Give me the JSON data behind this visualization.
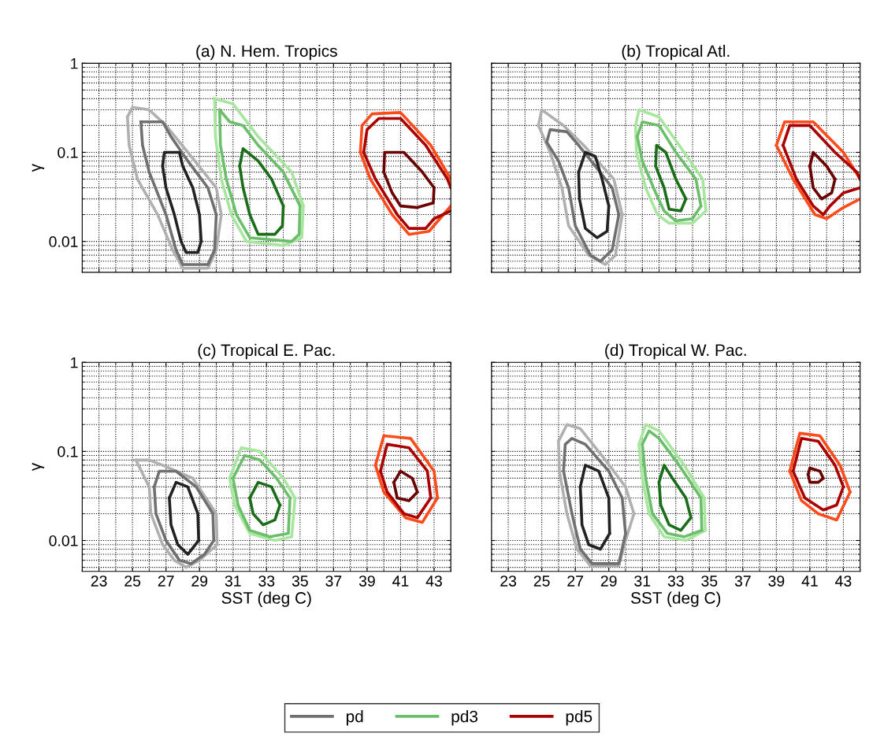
{
  "chart_data": [
    {
      "type": "line",
      "title": "(a) N. Hem. Tropics",
      "ylabel": "γ",
      "log": "y",
      "xlim": [
        22,
        44
      ],
      "ylim": [
        0.0045,
        1
      ],
      "xticks": [
        23,
        25,
        27,
        29,
        31,
        33,
        35,
        37,
        39,
        41,
        43
      ],
      "yticks": [
        0.01,
        0.1,
        1
      ],
      "grid": true,
      "tick_labels": "y",
      "series": [
        {
          "color": "#b0b0b0",
          "x": [
            24.7,
            25.0,
            26.0,
            27.0,
            28.5,
            30.0,
            30.3,
            null,
            24.7,
            24.8,
            25.3,
            26.5,
            27.4,
            28.0,
            29.5,
            30.0,
            30.3
          ],
          "values": [
            0.25,
            0.32,
            0.3,
            0.2,
            0.09,
            0.04,
            0.02,
            null,
            0.25,
            0.12,
            0.05,
            0.02,
            0.008,
            0.005,
            0.005,
            0.008,
            0.02
          ]
        },
        {
          "color": "#707070",
          "x": [
            25.5,
            26.8,
            27.3,
            28.3,
            29.5,
            30.0,
            null,
            25.5,
            25.6,
            26.0,
            27.0,
            27.6,
            28.0,
            29.5,
            29.9,
            30.0
          ],
          "values": [
            0.22,
            0.22,
            0.15,
            0.08,
            0.04,
            0.02,
            null,
            0.22,
            0.12,
            0.06,
            0.02,
            0.008,
            0.0055,
            0.0055,
            0.008,
            0.02
          ]
        },
        {
          "color": "#222222",
          "x": [
            26.8,
            26.9,
            27.8,
            28.0,
            28.6,
            29.0,
            29.1,
            null,
            26.8,
            27.0,
            27.5,
            27.9,
            28.2,
            28.9,
            29.1
          ],
          "values": [
            0.07,
            0.1,
            0.1,
            0.07,
            0.04,
            0.02,
            0.01,
            null,
            0.07,
            0.04,
            0.02,
            0.01,
            0.0075,
            0.0075,
            0.01
          ]
        },
        {
          "color": "#a8e6a0",
          "x": [
            29.9,
            31.0,
            32.5,
            34.5,
            35.2,
            null,
            29.9,
            29.95,
            30.3,
            30.9,
            31.8,
            34.0,
            35.1,
            35.2
          ],
          "values": [
            0.4,
            0.35,
            0.15,
            0.06,
            0.025,
            null,
            0.4,
            0.15,
            0.05,
            0.02,
            0.01,
            0.009,
            0.011,
            0.025
          ]
        },
        {
          "color": "#6cbf6a",
          "x": [
            30.2,
            30.8,
            31.6,
            32.5,
            34.0,
            35.0,
            null,
            30.2,
            30.25,
            30.6,
            31.2,
            32.0,
            34.5,
            34.95,
            35.0
          ],
          "values": [
            0.3,
            0.22,
            0.2,
            0.12,
            0.06,
            0.025,
            null,
            0.3,
            0.12,
            0.05,
            0.02,
            0.011,
            0.01,
            0.012,
            0.025
          ]
        },
        {
          "color": "#1a6e1a",
          "x": [
            31.4,
            31.6,
            32.5,
            33.3,
            34.0,
            null,
            31.4,
            31.6,
            32.0,
            32.5,
            33.5,
            33.95,
            34.0
          ],
          "values": [
            0.07,
            0.11,
            0.08,
            0.05,
            0.025,
            null,
            0.07,
            0.04,
            0.02,
            0.012,
            0.012,
            0.015,
            0.025
          ]
        },
        {
          "color": "#ff4a1a",
          "x": [
            38.6,
            38.7,
            39.3,
            41.0,
            42.8,
            44.0,
            null,
            38.6,
            39.2,
            40.5,
            41.5,
            42.7,
            44.0
          ],
          "values": [
            0.1,
            0.2,
            0.27,
            0.28,
            0.12,
            0.05,
            null,
            0.1,
            0.05,
            0.02,
            0.012,
            0.013,
            0.025
          ]
        },
        {
          "color": "#aa0000",
          "x": [
            38.8,
            39.0,
            39.7,
            41.0,
            42.5,
            43.8,
            44.0,
            null,
            38.8,
            39.5,
            40.8,
            41.5,
            42.5,
            43.0,
            44.0
          ],
          "values": [
            0.1,
            0.18,
            0.24,
            0.24,
            0.12,
            0.05,
            0.04,
            null,
            0.1,
            0.05,
            0.02,
            0.014,
            0.014,
            0.018,
            0.022
          ]
        },
        {
          "color": "#6a0000",
          "x": [
            40.0,
            40.05,
            41.2,
            42.3,
            43.0,
            null,
            40.0,
            40.5,
            41.0,
            42.0,
            42.95,
            43.0
          ],
          "values": [
            0.06,
            0.1,
            0.1,
            0.06,
            0.04,
            null,
            0.06,
            0.035,
            0.025,
            0.024,
            0.027,
            0.04
          ]
        }
      ]
    },
    {
      "type": "line",
      "title": "(b) Tropical Atl.",
      "log": "y",
      "xlim": [
        22,
        44
      ],
      "ylim": [
        0.0045,
        1
      ],
      "xticks": [
        23,
        25,
        27,
        29,
        31,
        33,
        35,
        37,
        39,
        41,
        43
      ],
      "yticks": [
        0.01,
        0.1,
        1
      ],
      "grid": true,
      "tick_labels": false,
      "series": [
        {
          "color": "#b0b0b0",
          "x": [
            24.8,
            25.0,
            26.3,
            27.5,
            29.3,
            29.8,
            null,
            24.8,
            25.5,
            26.2,
            26.6,
            27.8,
            28.8,
            29.4,
            29.8
          ],
          "values": [
            0.2,
            0.3,
            0.2,
            0.12,
            0.05,
            0.02,
            null,
            0.2,
            0.1,
            0.04,
            0.015,
            0.007,
            0.0055,
            0.007,
            0.02
          ]
        },
        {
          "color": "#707070",
          "x": [
            25.3,
            25.5,
            26.5,
            27.2,
            28.2,
            29.2,
            29.6,
            null,
            25.3,
            26.0,
            26.6,
            27.0,
            27.9,
            28.5,
            29.2,
            29.6
          ],
          "values": [
            0.13,
            0.18,
            0.17,
            0.12,
            0.07,
            0.04,
            0.02,
            null,
            0.13,
            0.08,
            0.04,
            0.015,
            0.007,
            0.006,
            0.008,
            0.02
          ]
        },
        {
          "color": "#222222",
          "x": [
            27.2,
            27.6,
            28.2,
            28.6,
            29.0,
            null,
            27.2,
            27.25,
            27.6,
            28.3,
            28.9,
            29.0
          ],
          "values": [
            0.06,
            0.1,
            0.09,
            0.05,
            0.025,
            null,
            0.06,
            0.03,
            0.014,
            0.011,
            0.013,
            0.025
          ]
        },
        {
          "color": "#a8e6a0",
          "x": [
            30.6,
            30.8,
            32.0,
            33.2,
            34.6,
            34.8,
            null,
            30.6,
            30.65,
            31.2,
            31.9,
            32.6,
            34.0,
            34.8
          ],
          "values": [
            0.2,
            0.3,
            0.25,
            0.12,
            0.05,
            0.022,
            null,
            0.2,
            0.1,
            0.04,
            0.02,
            0.016,
            0.016,
            0.022
          ]
        },
        {
          "color": "#6cbf6a",
          "x": [
            30.7,
            31.0,
            32.0,
            33.0,
            34.2,
            34.5,
            null,
            30.7,
            31.0,
            31.8,
            32.3,
            33.0,
            34.0,
            34.5
          ],
          "values": [
            0.15,
            0.22,
            0.2,
            0.1,
            0.05,
            0.025,
            null,
            0.15,
            0.08,
            0.035,
            0.022,
            0.017,
            0.018,
            0.025
          ]
        },
        {
          "color": "#1a6e1a",
          "x": [
            31.8,
            31.85,
            32.4,
            33.0,
            33.6,
            null,
            31.8,
            32.3,
            32.6,
            33.3,
            33.6
          ],
          "values": [
            0.07,
            0.12,
            0.1,
            0.05,
            0.03,
            null,
            0.07,
            0.04,
            0.023,
            0.022,
            0.03
          ]
        },
        {
          "color": "#ff4a1a",
          "x": [
            39.0,
            39.5,
            41.2,
            43.0,
            44.0,
            null,
            39.0,
            40.0,
            41.3,
            42.0,
            43.0,
            44.0
          ],
          "values": [
            0.12,
            0.22,
            0.22,
            0.1,
            0.05,
            null,
            0.12,
            0.05,
            0.02,
            0.018,
            0.024,
            0.03
          ]
        },
        {
          "color": "#aa0000",
          "x": [
            39.4,
            39.8,
            41.0,
            42.5,
            43.8,
            44.0,
            null,
            39.4,
            40.2,
            41.2,
            41.8,
            42.2,
            43.0,
            44.0
          ],
          "values": [
            0.12,
            0.2,
            0.2,
            0.1,
            0.06,
            0.05,
            null,
            0.12,
            0.05,
            0.025,
            0.02,
            0.025,
            0.035,
            0.04
          ]
        },
        {
          "color": "#6a0000",
          "x": [
            41.0,
            41.2,
            42.0,
            42.5,
            null,
            41.0,
            41.2,
            41.7,
            42.3,
            42.5
          ],
          "values": [
            0.07,
            0.1,
            0.07,
            0.05,
            null,
            0.07,
            0.04,
            0.03,
            0.035,
            0.05
          ]
        }
      ]
    },
    {
      "type": "line",
      "title": "(c) Tropical E. Pac.",
      "xlabel": "SST (deg C)",
      "ylabel": "γ",
      "log": "y",
      "xlim": [
        22,
        44
      ],
      "ylim": [
        0.0045,
        1
      ],
      "xticks": [
        23,
        25,
        27,
        29,
        31,
        33,
        35,
        37,
        39,
        41,
        43
      ],
      "yticks": [
        0.01,
        0.1,
        1
      ],
      "grid": true,
      "series": [
        {
          "color": "#b0b0b0",
          "x": [
            25.2,
            26.0,
            26.8,
            28.6,
            30.0,
            30.05,
            null,
            25.2,
            26.0,
            26.1,
            26.8,
            27.5,
            28.2,
            29.0,
            30.05
          ],
          "values": [
            0.08,
            0.08,
            0.07,
            0.05,
            0.02,
            0.009,
            null,
            0.08,
            0.04,
            0.02,
            0.009,
            0.006,
            0.005,
            0.006,
            0.009
          ]
        },
        {
          "color": "#707070",
          "x": [
            26.3,
            26.6,
            27.6,
            28.8,
            29.8,
            29.85,
            null,
            26.3,
            26.4,
            27.0,
            27.8,
            28.5,
            29.3,
            29.85
          ],
          "values": [
            0.04,
            0.06,
            0.06,
            0.04,
            0.02,
            0.01,
            null,
            0.04,
            0.02,
            0.01,
            0.006,
            0.0055,
            0.007,
            0.01
          ]
        },
        {
          "color": "#222222",
          "x": [
            27.2,
            27.6,
            28.3,
            28.9,
            28.95,
            null,
            27.2,
            27.3,
            27.7,
            28.3,
            28.95
          ],
          "values": [
            0.03,
            0.045,
            0.04,
            0.02,
            0.01,
            null,
            0.03,
            0.015,
            0.009,
            0.007,
            0.01
          ]
        },
        {
          "color": "#a8e6a0",
          "x": [
            30.8,
            31.5,
            32.6,
            34.0,
            34.7,
            null,
            30.8,
            31.1,
            32.0,
            33.5,
            34.5,
            34.7
          ],
          "values": [
            0.05,
            0.11,
            0.1,
            0.05,
            0.03,
            null,
            0.05,
            0.025,
            0.012,
            0.01,
            0.011,
            0.03
          ]
        },
        {
          "color": "#6cbf6a",
          "x": [
            31.0,
            31.7,
            32.6,
            33.6,
            34.4,
            null,
            31.0,
            31.3,
            32.0,
            33.2,
            34.3,
            34.4
          ],
          "values": [
            0.05,
            0.09,
            0.08,
            0.05,
            0.03,
            null,
            0.05,
            0.025,
            0.013,
            0.011,
            0.012,
            0.03
          ]
        },
        {
          "color": "#1a6e1a",
          "x": [
            32.0,
            32.5,
            33.3,
            33.8,
            null,
            32.0,
            32.2,
            32.8,
            33.5,
            33.8
          ],
          "values": [
            0.03,
            0.045,
            0.04,
            0.025,
            null,
            0.03,
            0.02,
            0.015,
            0.017,
            0.025
          ]
        },
        {
          "color": "#ff4a1a",
          "x": [
            39.5,
            40.0,
            41.6,
            43.0,
            43.2,
            null,
            39.5,
            40.0,
            41.3,
            42.3,
            43.2
          ],
          "values": [
            0.07,
            0.15,
            0.14,
            0.06,
            0.03,
            null,
            0.07,
            0.035,
            0.018,
            0.016,
            0.03
          ]
        },
        {
          "color": "#aa0000",
          "x": [
            39.8,
            40.2,
            41.5,
            42.6,
            42.8,
            null,
            39.8,
            40.2,
            41.2,
            42.0,
            42.8
          ],
          "values": [
            0.06,
            0.12,
            0.11,
            0.06,
            0.03,
            null,
            0.06,
            0.035,
            0.02,
            0.018,
            0.03
          ]
        },
        {
          "color": "#6a0000",
          "x": [
            40.6,
            41.0,
            41.7,
            42.0,
            null,
            40.6,
            40.8,
            41.5,
            42.0
          ],
          "values": [
            0.045,
            0.06,
            0.05,
            0.035,
            null,
            0.045,
            0.03,
            0.028,
            0.035
          ]
        }
      ]
    },
    {
      "type": "line",
      "title": "(d) Tropical W. Pac.",
      "xlabel": "SST (deg C)",
      "log": "y",
      "xlim": [
        22,
        44
      ],
      "ylim": [
        0.0045,
        1
      ],
      "xticks": [
        23,
        25,
        27,
        29,
        31,
        33,
        35,
        37,
        39,
        41,
        43
      ],
      "yticks": [
        0.01,
        0.1,
        1
      ],
      "grid": true,
      "tick_labels": "x",
      "legend": "bottom",
      "series": [
        {
          "color": "#b0b0b0",
          "x": [
            26.0,
            26.5,
            27.3,
            28.8,
            30.0,
            30.5,
            null,
            26.0,
            26.05,
            26.5,
            27.1,
            27.9,
            29.6,
            30.0,
            30.5
          ],
          "values": [
            0.13,
            0.2,
            0.18,
            0.08,
            0.04,
            0.02,
            null,
            0.13,
            0.06,
            0.02,
            0.008,
            0.0052,
            0.0052,
            0.01,
            0.02
          ]
        },
        {
          "name": "pd",
          "color": "#707070",
          "x": [
            26.3,
            26.4,
            26.8,
            27.6,
            29.0,
            29.8,
            30.0,
            null,
            26.3,
            26.8,
            27.3,
            28.0,
            29.6,
            30.0
          ],
          "values": [
            0.06,
            0.12,
            0.14,
            0.12,
            0.06,
            0.03,
            0.012,
            null,
            0.06,
            0.02,
            0.008,
            0.0055,
            0.0055,
            0.012
          ]
        },
        {
          "color": "#222222",
          "x": [
            27.3,
            27.6,
            28.4,
            29.0,
            29.05,
            null,
            27.3,
            27.4,
            27.8,
            28.5,
            29.05
          ],
          "values": [
            0.04,
            0.07,
            0.06,
            0.03,
            0.012,
            null,
            0.04,
            0.015,
            0.009,
            0.008,
            0.012
          ]
        },
        {
          "color": "#a8e6a0",
          "x": [
            30.8,
            31.2,
            32.0,
            33.5,
            34.7,
            34.75,
            null,
            30.8,
            31.0,
            31.4,
            32.3,
            33.6,
            34.75
          ],
          "values": [
            0.12,
            0.2,
            0.17,
            0.07,
            0.03,
            0.013,
            null,
            0.12,
            0.05,
            0.02,
            0.011,
            0.01,
            0.013
          ]
        },
        {
          "name": "pd3",
          "color": "#6cbf6a",
          "x": [
            31.0,
            31.4,
            32.0,
            33.2,
            34.5,
            34.55,
            null,
            31.0,
            31.2,
            31.6,
            32.5,
            33.5,
            34.55
          ],
          "values": [
            0.12,
            0.17,
            0.14,
            0.07,
            0.03,
            0.013,
            null,
            0.12,
            0.05,
            0.02,
            0.012,
            0.011,
            0.013
          ]
        },
        {
          "color": "#1a6e1a",
          "x": [
            32.0,
            32.3,
            32.8,
            33.6,
            33.9,
            null,
            32.0,
            32.1,
            32.6,
            33.3,
            33.9
          ],
          "values": [
            0.045,
            0.07,
            0.05,
            0.03,
            0.018,
            null,
            0.045,
            0.025,
            0.015,
            0.013,
            0.018
          ]
        },
        {
          "color": "#ff4a1a",
          "x": [
            39.8,
            40.4,
            41.6,
            42.8,
            43.4,
            null,
            39.8,
            40.5,
            41.5,
            42.6,
            43.4
          ],
          "values": [
            0.06,
            0.16,
            0.15,
            0.07,
            0.035,
            null,
            0.06,
            0.028,
            0.02,
            0.017,
            0.035
          ]
        },
        {
          "name": "pd5",
          "color": "#aa0000",
          "x": [
            40.0,
            40.5,
            41.5,
            42.5,
            43.0,
            null,
            40.0,
            40.7,
            41.8,
            42.6,
            43.0
          ],
          "values": [
            0.06,
            0.14,
            0.13,
            0.07,
            0.04,
            null,
            0.06,
            0.03,
            0.022,
            0.025,
            0.04
          ]
        },
        {
          "color": "#6a0000",
          "x": [
            40.9,
            41.0,
            41.6,
            41.8,
            null,
            40.9,
            41.0,
            41.5,
            41.8
          ],
          "values": [
            0.055,
            0.065,
            0.06,
            0.05,
            null,
            0.055,
            0.045,
            0.045,
            0.05
          ]
        }
      ]
    }
  ]
}
